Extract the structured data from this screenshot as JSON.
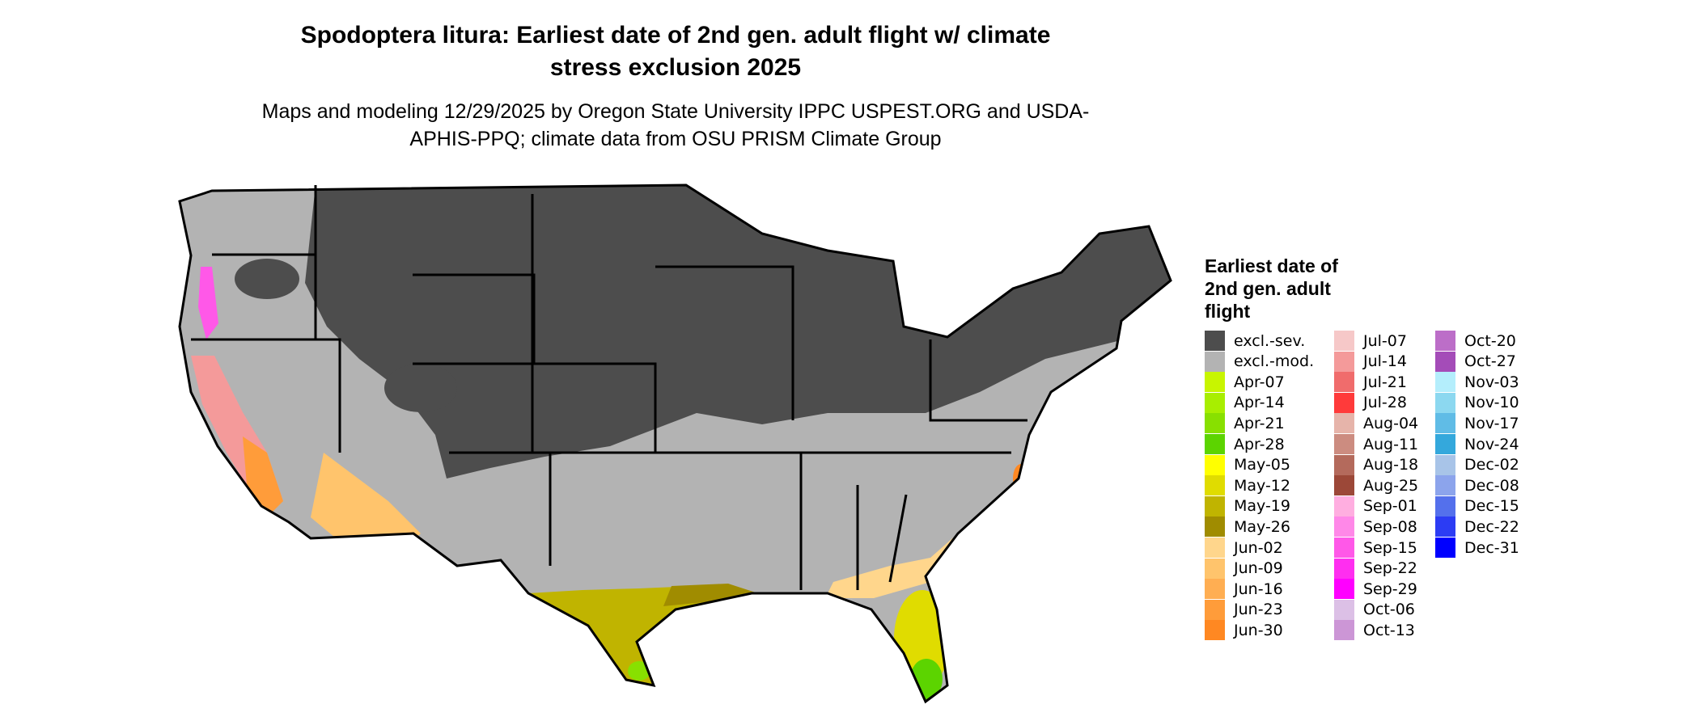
{
  "title": "Spodoptera litura: Earliest date of 2nd gen. adult flight w/ climate stress exclusion 2025",
  "subtitle": "Maps and modeling 12/29/2025 by Oregon State University IPPC USPEST.ORG and USDA-APHIS-PPQ; climate data from OSU PRISM Climate Group",
  "legend": {
    "title": "Earliest date of 2nd gen. adult flight",
    "entries": [
      {
        "label": "excl.-sev.",
        "color": "#4d4d4d"
      },
      {
        "label": "excl.-mod.",
        "color": "#b3b3b3"
      },
      {
        "label": "Apr-07",
        "color": "#c8f500"
      },
      {
        "label": "Apr-14",
        "color": "#a8ee00"
      },
      {
        "label": "Apr-21",
        "color": "#88e000"
      },
      {
        "label": "Apr-28",
        "color": "#5cd400"
      },
      {
        "label": "May-05",
        "color": "#ffff00"
      },
      {
        "label": "May-12",
        "color": "#e0dc00"
      },
      {
        "label": "May-19",
        "color": "#c0b400"
      },
      {
        "label": "May-26",
        "color": "#a08c00"
      },
      {
        "label": "Jun-02",
        "color": "#ffd68c"
      },
      {
        "label": "Jun-09",
        "color": "#ffc46c"
      },
      {
        "label": "Jun-16",
        "color": "#ffae52"
      },
      {
        "label": "Jun-23",
        "color": "#ff9c3a"
      },
      {
        "label": "Jun-30",
        "color": "#ff8822"
      },
      {
        "label": "Jul-07",
        "color": "#f6c8c8"
      },
      {
        "label": "Jul-14",
        "color": "#f49a9a"
      },
      {
        "label": "Jul-21",
        "color": "#f06c6c"
      },
      {
        "label": "Jul-28",
        "color": "#ff3a3a"
      },
      {
        "label": "Aug-04",
        "color": "#e6b4aa"
      },
      {
        "label": "Aug-11",
        "color": "#cc8c80"
      },
      {
        "label": "Aug-18",
        "color": "#b46a5c"
      },
      {
        "label": "Aug-25",
        "color": "#9c4838"
      },
      {
        "label": "Sep-01",
        "color": "#ffaee0"
      },
      {
        "label": "Sep-08",
        "color": "#ff88e8"
      },
      {
        "label": "Sep-15",
        "color": "#ff58e8"
      },
      {
        "label": "Sep-22",
        "color": "#ff2ef0"
      },
      {
        "label": "Sep-29",
        "color": "#ff00ff"
      },
      {
        "label": "Oct-06",
        "color": "#dcc0e6"
      },
      {
        "label": "Oct-13",
        "color": "#cc96d6"
      },
      {
        "label": "Oct-20",
        "color": "#bc6ec8"
      },
      {
        "label": "Oct-27",
        "color": "#a44cb8"
      },
      {
        "label": "Nov-03",
        "color": "#b4eefc"
      },
      {
        "label": "Nov-10",
        "color": "#8cd8f0"
      },
      {
        "label": "Nov-17",
        "color": "#60bce6"
      },
      {
        "label": "Nov-24",
        "color": "#34a8dc"
      },
      {
        "label": "Dec-02",
        "color": "#a8c4e8"
      },
      {
        "label": "Dec-08",
        "color": "#8ca4ec"
      },
      {
        "label": "Dec-15",
        "color": "#5470ec"
      },
      {
        "label": "Dec-22",
        "color": "#2c3cf4"
      },
      {
        "label": "Dec-31",
        "color": "#0000ff"
      }
    ]
  }
}
